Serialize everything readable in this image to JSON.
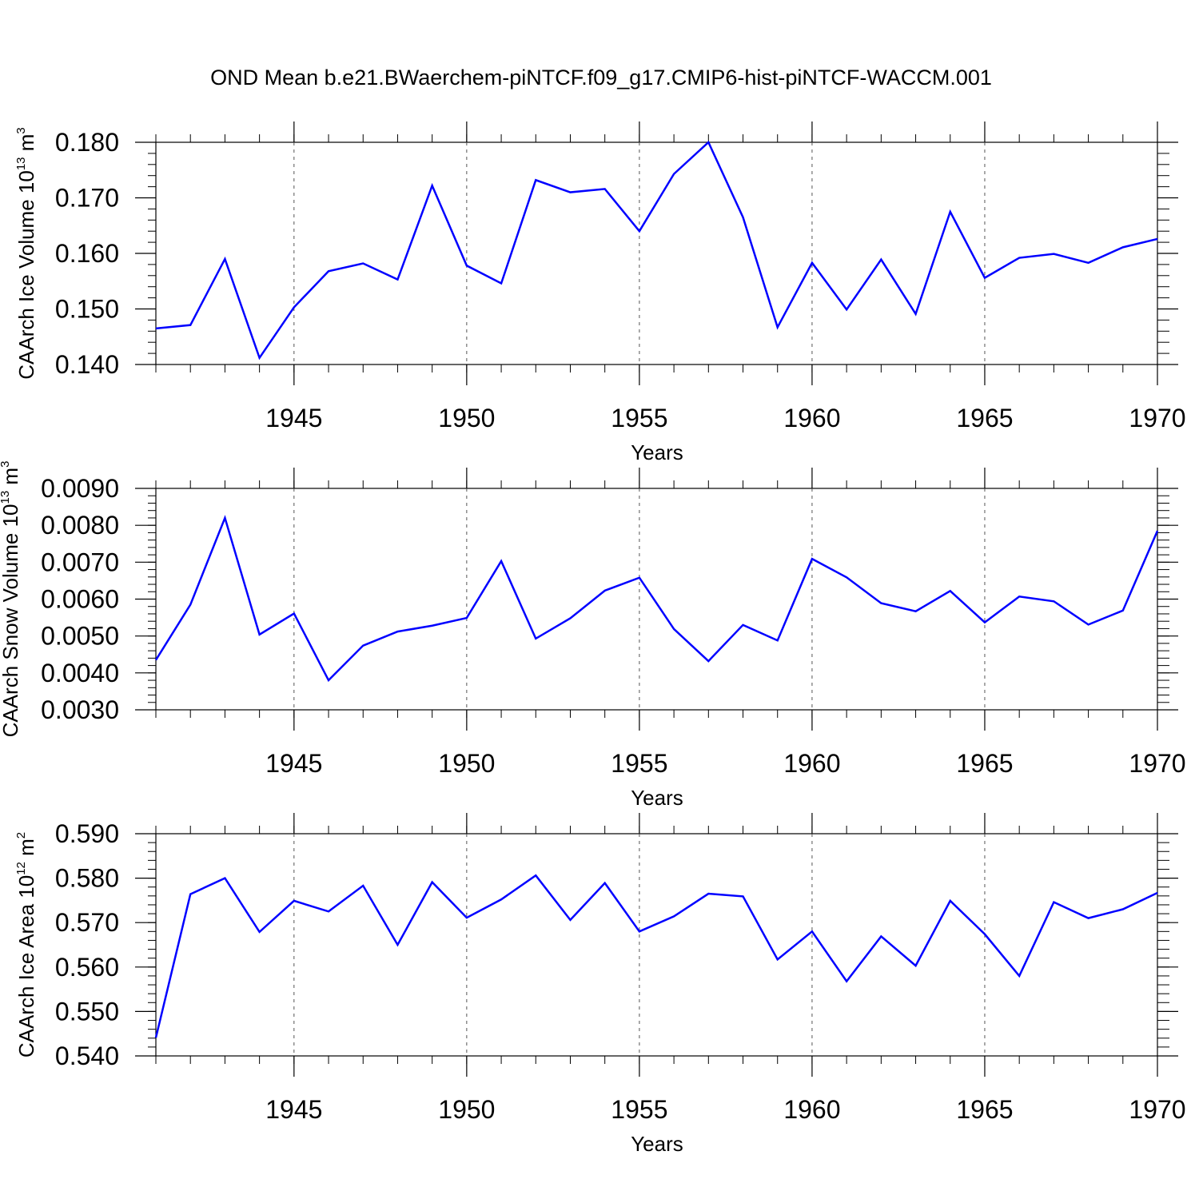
{
  "title": "OND Mean b.e21.BWaerchem-piNTCF.f09_g17.CMIP6-hist-piNTCF-WACCM.001",
  "line_color": "#0000ff",
  "chart_data": [
    {
      "type": "line",
      "ylabel": {
        "main": "CAArch Ice Volume 10",
        "exp": "13",
        "unit": " m",
        "unit_exp": "3"
      },
      "xlabel": "Years",
      "xlim": [
        1941,
        1970
      ],
      "ylim": [
        0.14,
        0.18
      ],
      "yticks": [
        "0.140",
        "0.150",
        "0.160",
        "0.170",
        "0.180"
      ],
      "xticks": [
        "1945",
        "1950",
        "1955",
        "1960",
        "1965",
        "1970"
      ],
      "grid": "vertical dashed at major x ticks",
      "x": [
        1941,
        1942,
        1943,
        1944,
        1945,
        1946,
        1947,
        1948,
        1949,
        1950,
        1951,
        1952,
        1953,
        1954,
        1955,
        1956,
        1957,
        1958,
        1959,
        1960,
        1961,
        1962,
        1963,
        1964,
        1965,
        1966,
        1967,
        1968,
        1969,
        1970
      ],
      "series": [
        {
          "values": [
            0.1465,
            0.1471,
            0.159,
            0.1412,
            0.1503,
            0.1568,
            0.1582,
            0.1553,
            0.1722,
            0.1578,
            0.1546,
            0.1732,
            0.171,
            0.1716,
            0.164,
            0.1743,
            0.18,
            0.1665,
            0.1467,
            0.1583,
            0.1499,
            0.1589,
            0.1491,
            0.1675,
            0.1556,
            0.1592,
            0.1599,
            0.1583,
            0.1611,
            0.1626
          ]
        }
      ]
    },
    {
      "type": "line",
      "ylabel": {
        "main": "CAArch Snow Volume 10",
        "exp": "13",
        "unit": " m",
        "unit_exp": "3"
      },
      "xlabel": "Years",
      "xlim": [
        1941,
        1970
      ],
      "ylim": [
        0.003,
        0.009
      ],
      "yticks": [
        "0.0030",
        "0.0040",
        "0.0050",
        "0.0060",
        "0.0070",
        "0.0080",
        "0.0090"
      ],
      "xticks": [
        "1945",
        "1950",
        "1955",
        "1960",
        "1965",
        "1970"
      ],
      "grid": "vertical dashed at major x ticks",
      "x": [
        1941,
        1942,
        1943,
        1944,
        1945,
        1946,
        1947,
        1948,
        1949,
        1950,
        1951,
        1952,
        1953,
        1954,
        1955,
        1956,
        1957,
        1958,
        1959,
        1960,
        1961,
        1962,
        1963,
        1964,
        1965,
        1966,
        1967,
        1968,
        1969,
        1970
      ],
      "series": [
        {
          "values": [
            0.00435,
            0.00585,
            0.0082,
            0.00504,
            0.00561,
            0.0038,
            0.00474,
            0.00512,
            0.00528,
            0.00549,
            0.00703,
            0.00493,
            0.00548,
            0.00623,
            0.00658,
            0.00519,
            0.00432,
            0.0053,
            0.00488,
            0.00709,
            0.00659,
            0.00589,
            0.00567,
            0.00622,
            0.00537,
            0.00607,
            0.00594,
            0.00531,
            0.00569,
            0.00785
          ]
        }
      ]
    },
    {
      "type": "line",
      "ylabel": {
        "main": "CAArch Ice Area 10",
        "exp": "12",
        "unit": " m",
        "unit_exp": "2"
      },
      "xlabel": "Years",
      "xlim": [
        1941,
        1970
      ],
      "ylim": [
        0.54,
        0.59
      ],
      "yticks": [
        "0.540",
        "0.550",
        "0.560",
        "0.570",
        "0.580",
        "0.590"
      ],
      "xticks": [
        "1945",
        "1950",
        "1955",
        "1960",
        "1965",
        "1970"
      ],
      "grid": "vertical dashed at major x ticks",
      "x": [
        1941,
        1942,
        1943,
        1944,
        1945,
        1946,
        1947,
        1948,
        1949,
        1950,
        1951,
        1952,
        1953,
        1954,
        1955,
        1956,
        1957,
        1958,
        1959,
        1960,
        1961,
        1962,
        1963,
        1964,
        1965,
        1966,
        1967,
        1968,
        1969,
        1970
      ],
      "series": [
        {
          "values": [
            0.5441,
            0.5764,
            0.58,
            0.5679,
            0.5749,
            0.5725,
            0.5783,
            0.565,
            0.5791,
            0.5711,
            0.5752,
            0.5806,
            0.5706,
            0.5789,
            0.568,
            0.5714,
            0.5765,
            0.5759,
            0.5617,
            0.568,
            0.5568,
            0.5669,
            0.5603,
            0.5749,
            0.5674,
            0.558,
            0.5746,
            0.571,
            0.573,
            0.5767
          ]
        }
      ]
    }
  ]
}
